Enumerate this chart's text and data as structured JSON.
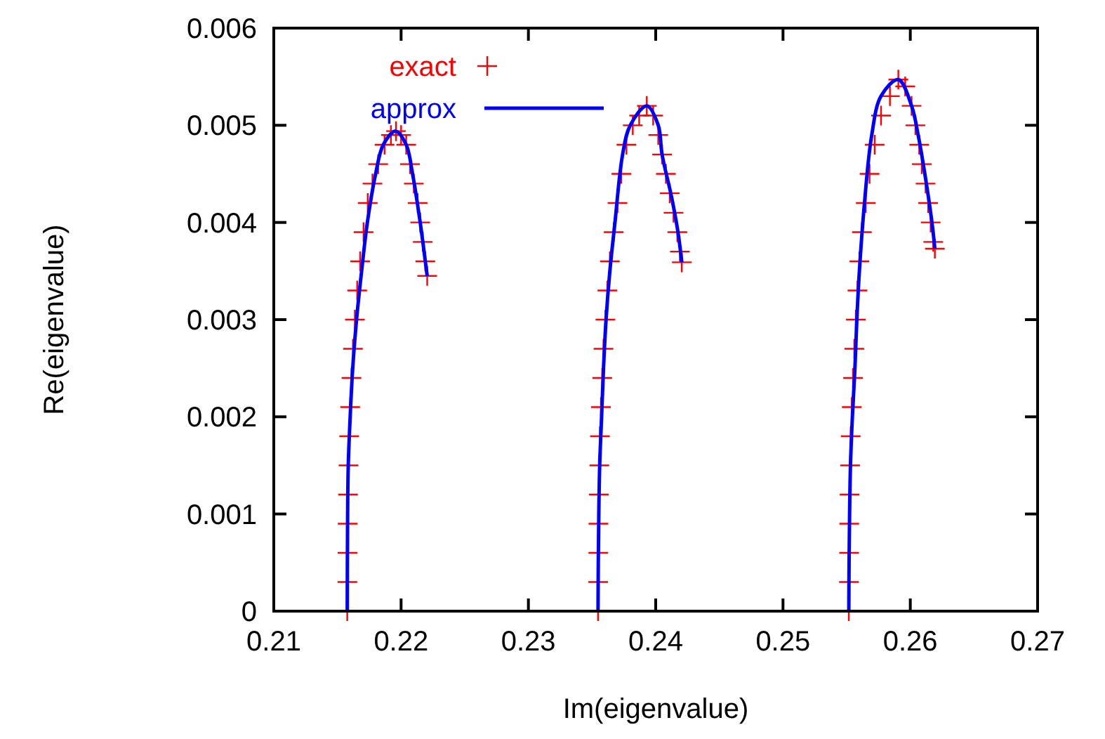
{
  "chart_data": {
    "type": "scatter",
    "xlabel": "Im(eigenvalue)",
    "ylabel": "Re(eigenvalue)",
    "xlim": [
      0.21,
      0.27
    ],
    "xticks": [
      0.21,
      0.22,
      0.23,
      0.24,
      0.25,
      0.26,
      0.27
    ],
    "ylim": [
      0,
      0.006
    ],
    "yticks": [
      0,
      0.001,
      0.002,
      0.003,
      0.004,
      0.005,
      0.006
    ],
    "grid": false,
    "legend": "top left",
    "series": [
      {
        "name": "exact",
        "marker": "cross",
        "color": "#ff0000",
        "x": [
          0.21577,
          0.21578,
          0.21579,
          0.2158,
          0.21583,
          0.21587,
          0.21592,
          0.216,
          0.2161,
          0.21622,
          0.21637,
          0.21655,
          0.21678,
          0.21705,
          0.21738,
          0.21775,
          0.2182,
          0.2187,
          0.2192,
          0.2196,
          0.22,
          0.2204,
          0.2207,
          0.221,
          0.2213,
          0.2215,
          0.2217,
          0.2219,
          0.22205,
          0.23547,
          0.23548,
          0.23549,
          0.2355,
          0.23553,
          0.23557,
          0.23562,
          0.2357,
          0.2358,
          0.2359,
          0.23605,
          0.2362,
          0.2364,
          0.2367,
          0.237,
          0.2373,
          0.2377,
          0.2382,
          0.2387,
          0.2393,
          0.2398,
          0.2402,
          0.2405,
          0.2408,
          0.2411,
          0.2414,
          0.2417,
          0.2419,
          0.24205,
          0.25517,
          0.25518,
          0.25519,
          0.2552,
          0.25523,
          0.25527,
          0.25532,
          0.2554,
          0.2555,
          0.2556,
          0.25572,
          0.25585,
          0.256,
          0.2562,
          0.2565,
          0.2568,
          0.2572,
          0.2577,
          0.2584,
          0.25906,
          0.2596,
          0.2601,
          0.2604,
          0.2607,
          0.2609,
          0.2612,
          0.2614,
          0.2616,
          0.2618,
          0.26193
        ],
        "values": [
          0,
          0.0003,
          0.0006,
          0.0009,
          0.0012,
          0.0015,
          0.0018,
          0.0021,
          0.0024,
          0.0027,
          0.003,
          0.0033,
          0.0036,
          0.0039,
          0.0042,
          0.0044,
          0.0046,
          0.0048,
          0.0049,
          0.00494,
          0.0049,
          0.0048,
          0.0046,
          0.0044,
          0.0042,
          0.004,
          0.0038,
          0.0036,
          0.00345,
          0,
          0.0003,
          0.0006,
          0.0009,
          0.0012,
          0.0015,
          0.0018,
          0.0021,
          0.0024,
          0.0027,
          0.003,
          0.0033,
          0.0036,
          0.0039,
          0.0042,
          0.0045,
          0.0048,
          0.005,
          0.0051,
          0.0052,
          0.0051,
          0.0049,
          0.0047,
          0.0045,
          0.0043,
          0.0041,
          0.0039,
          0.0037,
          0.00359,
          0,
          0.0003,
          0.0006,
          0.0009,
          0.0012,
          0.0015,
          0.0018,
          0.0021,
          0.0024,
          0.0027,
          0.003,
          0.0033,
          0.0036,
          0.0039,
          0.0042,
          0.0045,
          0.0048,
          0.0051,
          0.0053,
          0.00547,
          0.0054,
          0.0052,
          0.005,
          0.0048,
          0.0046,
          0.0044,
          0.0042,
          0.004,
          0.0038,
          0.00373
        ]
      },
      {
        "name": "approx",
        "type": "line",
        "line_style": "solid",
        "color": "#0000ff",
        "x": [
          0.21577,
          0.21578,
          0.2158,
          0.21585,
          0.216,
          0.2162,
          0.2165,
          0.2169,
          0.21735,
          0.218,
          0.2186,
          0.21956,
          0.2204,
          0.2209,
          0.2215,
          0.222,
          0.22205,
          0.23,
          0.23547,
          0.23549,
          0.23553,
          0.2356,
          0.23575,
          0.2359,
          0.2361,
          0.2364,
          0.2368,
          0.2374,
          0.238,
          0.2393,
          0.2402,
          0.2405,
          0.24125,
          0.24175,
          0.24205,
          0.25,
          0.25517,
          0.25519,
          0.25523,
          0.2553,
          0.25545,
          0.25565,
          0.2558,
          0.256,
          0.2564,
          0.25696,
          0.2577,
          0.25906,
          0.2601,
          0.26063,
          0.26125,
          0.2617,
          0.26193
        ],
        "values": [
          0,
          0.0005,
          0.001,
          0.0015,
          0.002,
          0.0025,
          0.003,
          0.0035,
          0.004,
          0.0045,
          0.0048,
          0.00494,
          0.0048,
          0.0045,
          0.004,
          0.0035,
          0.00345,
          null,
          0,
          0.0005,
          0.001,
          0.0015,
          0.002,
          0.0025,
          0.003,
          0.0035,
          0.004,
          0.0047,
          0.005,
          0.0052,
          0.005,
          0.0047,
          0.00426,
          0.0039,
          0.00359,
          null,
          0,
          0.0005,
          0.001,
          0.0015,
          0.002,
          0.0025,
          0.003,
          0.0035,
          0.0042,
          0.00489,
          0.0053,
          0.00547,
          0.0052,
          0.00489,
          0.00441,
          0.004,
          0.00373
        ]
      }
    ]
  }
}
